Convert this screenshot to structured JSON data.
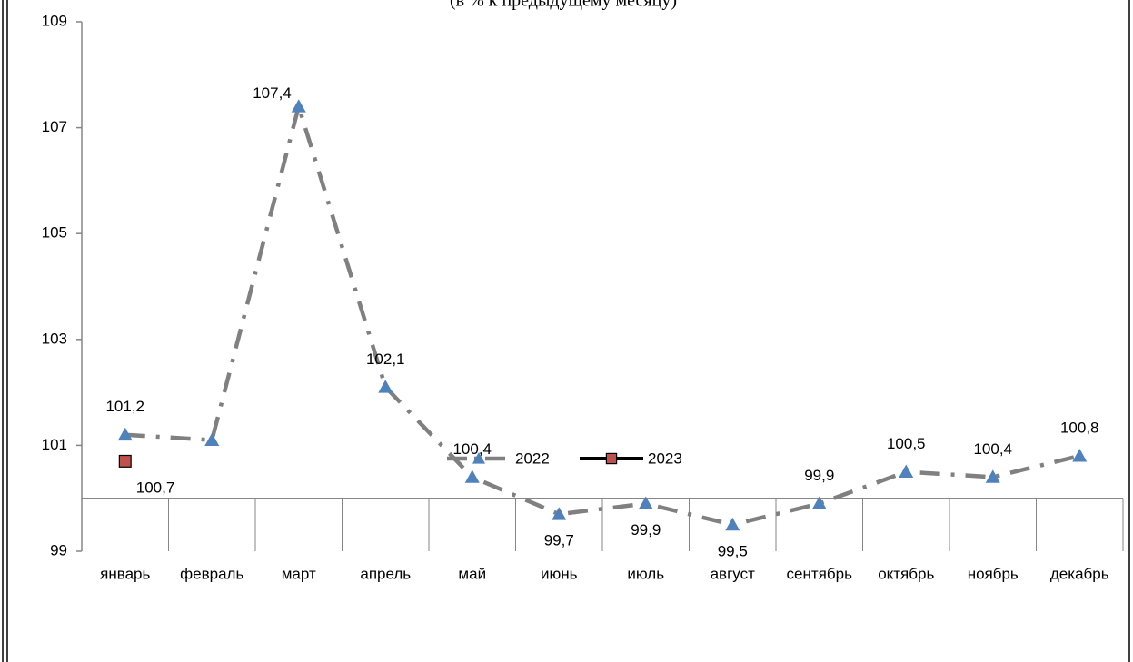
{
  "chart_data": {
    "type": "line",
    "subtitle": "(в % к предыдущему месяцу)",
    "categories": [
      "январь",
      "февраль",
      "март",
      "апрель",
      "май",
      "июнь",
      "июль",
      "август",
      "сентябрь",
      "октябрь",
      "ноябрь",
      "декабрь"
    ],
    "series": [
      {
        "name": "2022",
        "color": "#808080",
        "marker_color": "#4f81bd",
        "marker": "triangle",
        "values": [
          101.2,
          101.1,
          107.4,
          102.1,
          100.4,
          99.7,
          99.9,
          99.5,
          99.9,
          100.5,
          100.4,
          100.8
        ],
        "value_labels": [
          "101,2",
          null,
          "107,4",
          "102,1",
          "100,4",
          "99,7",
          "99,9",
          "99,5",
          "99,9",
          "100,5",
          "100,4",
          "100,8"
        ]
      },
      {
        "name": "2023",
        "color": "#000000",
        "marker_color": "#c0504d",
        "marker": "square",
        "values": [
          100.7,
          null,
          null,
          null,
          null,
          null,
          null,
          null,
          null,
          null,
          null,
          null
        ],
        "value_labels": [
          "100,7",
          null,
          null,
          null,
          null,
          null,
          null,
          null,
          null,
          null,
          null,
          null
        ]
      }
    ],
    "ylim": [
      99,
      109
    ],
    "yticks": [
      99,
      101,
      103,
      105,
      107,
      109
    ],
    "x_axis_at": 100,
    "legend": "bottom"
  }
}
